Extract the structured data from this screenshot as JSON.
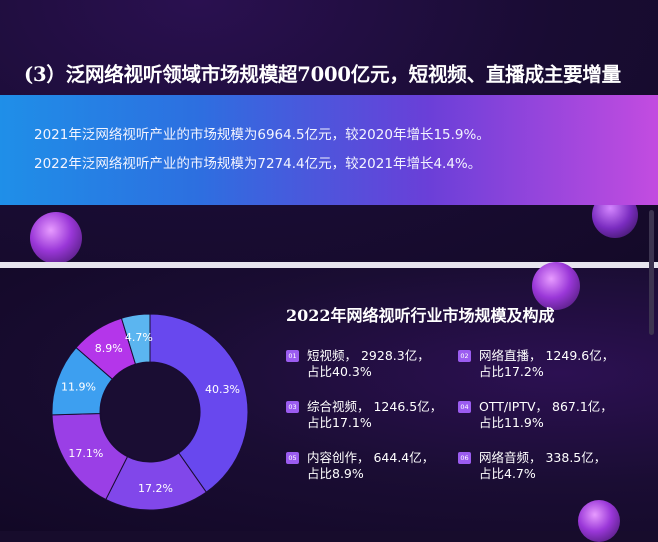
{
  "heading": "(3）泛网络视听领域市场规模超7000亿元，短视频、直播成主要增量",
  "banner": {
    "line1": "2021年泛网络视听产业的市场规模为6964.5亿元，较2020年增长15.9%。",
    "line2": "2022年泛网络视听产业的市场规模为7274.4亿元，较2021年增长4.4%。"
  },
  "chart_data": {
    "type": "pie",
    "style": "donut",
    "title": "2022年网络视听行业市场规模及构成",
    "categories": [
      "短视频",
      "网络直播",
      "综合视频",
      "OTT/IPTV",
      "内容创作",
      "网络音频"
    ],
    "values": [
      2928.3,
      1249.6,
      1246.5,
      867.1,
      644.4,
      338.5
    ],
    "shares": [
      40.3,
      17.2,
      17.1,
      11.9,
      8.9,
      4.7
    ],
    "share_labels": [
      "40.3%",
      "17.2%",
      "17.1%",
      "11.9%",
      "8.9%",
      "4.7%"
    ],
    "colors": [
      "#6848ee",
      "#8147ea",
      "#9a3fe6",
      "#3d9ff0",
      "#b436ea",
      "#5bb5f0"
    ],
    "legend": [
      {
        "num": "01",
        "line1": "短视频，  2928.3亿，",
        "line2": "占比40.3%"
      },
      {
        "num": "02",
        "line1": "网络直播，  1249.6亿，",
        "line2": "占比17.2%"
      },
      {
        "num": "03",
        "line1": "综合视频，  1246.5亿，",
        "line2": "占比17.1%"
      },
      {
        "num": "04",
        "line1": "OTT/IPTV，  867.1亿，",
        "line2": "占比11.9%"
      },
      {
        "num": "05",
        "line1": "内容创作，  644.4亿，",
        "line2": "占比8.9%"
      },
      {
        "num": "06",
        "line1": "网络音频，  338.5亿，",
        "line2": "占比4.7%"
      }
    ],
    "legend_placement": "right"
  }
}
